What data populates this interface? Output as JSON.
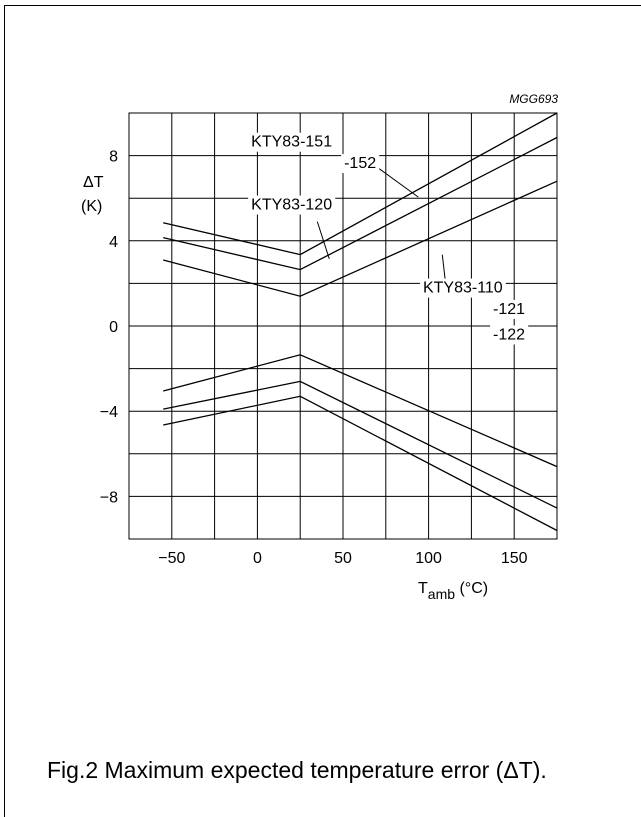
{
  "code": "MGG693",
  "caption": "Fig.2  Maximum expected temperature error (ΔT).",
  "chart_data": {
    "type": "line",
    "xlim": [
      -75,
      175
    ],
    "ylim": [
      -10,
      10
    ],
    "x_ticks": [
      -50,
      0,
      50,
      100,
      150
    ],
    "y_ticks": [
      8,
      4,
      0,
      -4,
      -8
    ],
    "x_tick_labels": [
      "−50",
      "0",
      "50",
      "100",
      "150"
    ],
    "y_tick_labels": [
      "8",
      "4",
      "0",
      "−4",
      "−8"
    ],
    "xlabel": {
      "main": "T",
      "sub": "amb",
      "unit": "(°C)"
    },
    "ylabel": [
      "ΔT",
      "(K)"
    ],
    "grid": true,
    "series": [
      {
        "name": "KTY83-151 -152 (+)",
        "x": [
          -55,
          25,
          175
        ],
        "y": [
          4.85,
          3.35,
          10.0
        ]
      },
      {
        "name": "KTY83-120 (+)",
        "x": [
          -55,
          25,
          175
        ],
        "y": [
          4.15,
          2.65,
          8.85
        ]
      },
      {
        "name": "KTY83-110 -121 -122 (+)",
        "x": [
          -55,
          25,
          175
        ],
        "y": [
          3.1,
          1.4,
          6.8
        ]
      },
      {
        "name": "KTY83-110 -121 -122 (−)",
        "x": [
          -55,
          25,
          175
        ],
        "y": [
          -3.05,
          -1.35,
          -6.6
        ]
      },
      {
        "name": "KTY83-120 (−)",
        "x": [
          -55,
          25,
          175
        ],
        "y": [
          -3.9,
          -2.6,
          -8.55
        ]
      },
      {
        "name": "KTY83-151 -152 (−)",
        "x": [
          -55,
          25,
          175
        ],
        "y": [
          -4.65,
          -3.3,
          -9.6
        ]
      }
    ],
    "annotations": [
      {
        "id": "label-151",
        "text": "KTY83-151",
        "anchor": [
          20,
          8.7
        ]
      },
      {
        "id": "label-152",
        "text": "-152",
        "anchor": [
          60,
          7.7
        ]
      },
      {
        "id": "label-120",
        "text": "KTY83-120",
        "anchor": [
          20,
          5.75
        ]
      },
      {
        "id": "label-110",
        "text": "KTY83-110",
        "anchor": [
          120,
          1.85
        ]
      },
      {
        "id": "label-121",
        "text": "-121",
        "anchor": [
          147,
          0.85
        ]
      },
      {
        "id": "label-122",
        "text": "-122",
        "anchor": [
          147,
          -0.35
        ]
      }
    ],
    "leaders": [
      {
        "from": [
          70,
          7.45
        ],
        "to": [
          94,
          6.05
        ]
      },
      {
        "from": [
          35,
          4.9
        ],
        "to": [
          42,
          3.15
        ]
      },
      {
        "from": [
          108,
          3.35
        ],
        "to": [
          110,
          1.95
        ]
      }
    ]
  }
}
